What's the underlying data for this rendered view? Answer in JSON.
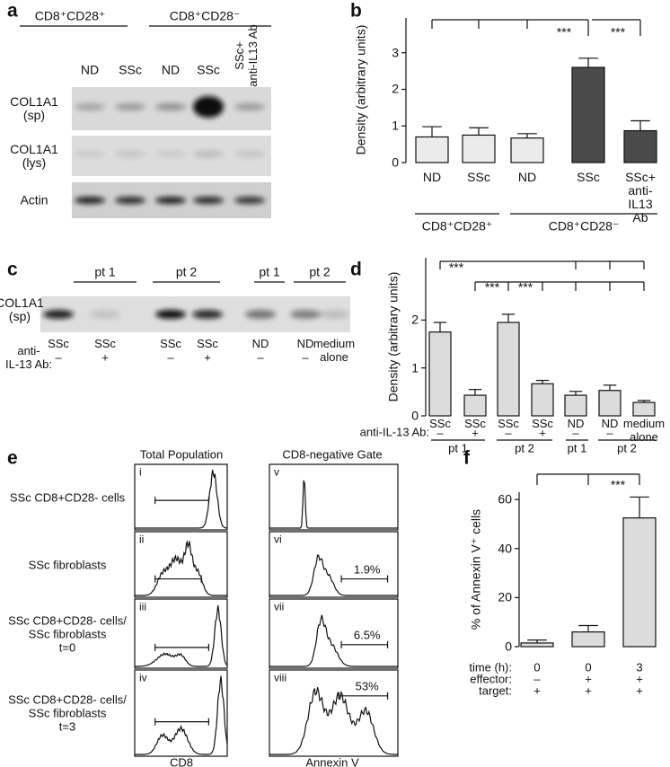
{
  "figure": {
    "panel_labels": [
      "a",
      "b",
      "c",
      "d",
      "e",
      "f"
    ]
  },
  "blot_a": {
    "groups": [
      "CD8⁺CD28⁺",
      "CD8⁺CD28⁻"
    ],
    "lanes": [
      "ND",
      "SSc",
      "ND",
      "SSc",
      "SSc+\nanti-IL13 Ab"
    ],
    "rows": [
      "COL1A1\n(sp)",
      "COL1A1\n(lys)",
      "Actin"
    ]
  },
  "blot_c": {
    "groups": [
      "pt 1",
      "pt 2",
      "pt 1",
      "pt 2"
    ],
    "row": "COL1A1\n(sp)",
    "lanes": [
      "SSc",
      "SSc",
      "SSc",
      "SSc",
      "ND",
      "ND",
      "medium\nalone"
    ],
    "treatment_label": "anti-\nIL-13 Ab:",
    "treatment": [
      "–",
      "+",
      "–",
      "+",
      "–",
      "–",
      null
    ]
  },
  "chart_data": [
    {
      "type": "bar",
      "ylabel": "Density (arbitrary units)",
      "categories": [
        "ND",
        "SSc",
        "ND",
        "SSc",
        "SSc+\nanti-IL13\nAb"
      ],
      "values": [
        0.7,
        0.75,
        0.67,
        2.6,
        0.87
      ],
      "errors": [
        0.28,
        0.2,
        0.12,
        0.25,
        0.27
      ],
      "colors": [
        "#ebebeb",
        "#ebebeb",
        "#ebebeb",
        "#4a4a4a",
        "#4a4a4a"
      ],
      "ylim": [
        0,
        3.95
      ],
      "yticks": [
        0,
        1,
        2,
        3
      ],
      "groups": [
        "CD8⁺CD28⁺",
        "CD8⁺CD28⁻"
      ],
      "annotations": [
        "***",
        "***"
      ]
    },
    {
      "type": "bar",
      "ylabel": "Density (arbitrary units)",
      "categories": [
        "SSc",
        "SSc",
        "SSc",
        "SSc",
        "ND",
        "ND",
        "medium\nalone"
      ],
      "values": [
        1.75,
        0.43,
        1.95,
        0.67,
        0.43,
        0.53,
        0.28
      ],
      "errors": [
        0.2,
        0.12,
        0.17,
        0.07,
        0.08,
        0.11,
        0.04
      ],
      "color": "#dcdcdc",
      "ylim": [
        0,
        3.3
      ],
      "yticks": [
        0,
        1,
        2
      ],
      "row_label": "anti-IL-13 Ab:",
      "row_values": [
        "–",
        "+",
        "–",
        "+",
        "–",
        "–",
        null
      ],
      "groups": [
        "pt 1",
        "pt 2",
        "pt 1",
        "pt 2"
      ],
      "annotations": [
        "***",
        "***",
        "***"
      ]
    },
    {
      "type": "bar",
      "ylabel": "% of Annexin V⁺ cells",
      "values": [
        1.5,
        6,
        52.5
      ],
      "errors": [
        1.2,
        2.6,
        8.5
      ],
      "color": "#dcdcdc",
      "ylim": [
        0,
        63
      ],
      "yticks": [
        0,
        20,
        40,
        60
      ],
      "table": [
        {
          "label": "time (h):",
          "values": [
            "0",
            "0",
            "3"
          ]
        },
        {
          "label": "effector:",
          "values": [
            "–",
            "+",
            "+"
          ]
        },
        {
          "label": "target:",
          "values": [
            "+",
            "+",
            "+"
          ]
        }
      ],
      "annotations": [
        "***"
      ]
    }
  ],
  "flow_e": {
    "columns": [
      "Total Population",
      "CD8-negative Gate"
    ],
    "rows": [
      "SSc CD8+CD28- cells",
      "SSc fibroblasts",
      "SSc CD8+CD28- cells/\nSSc fibroblasts\nt=0",
      "SSc CD8+CD28- cells/\nSSc fibroblasts\nt=3"
    ],
    "numerals": [
      "i",
      "ii",
      "iii",
      "iv",
      "v",
      "vi",
      "vii",
      "viii"
    ],
    "percent_labels": [
      null,
      "1.9%",
      "6.5%",
      "53%"
    ],
    "x_labels": [
      "CD8",
      "Annexin V"
    ]
  }
}
